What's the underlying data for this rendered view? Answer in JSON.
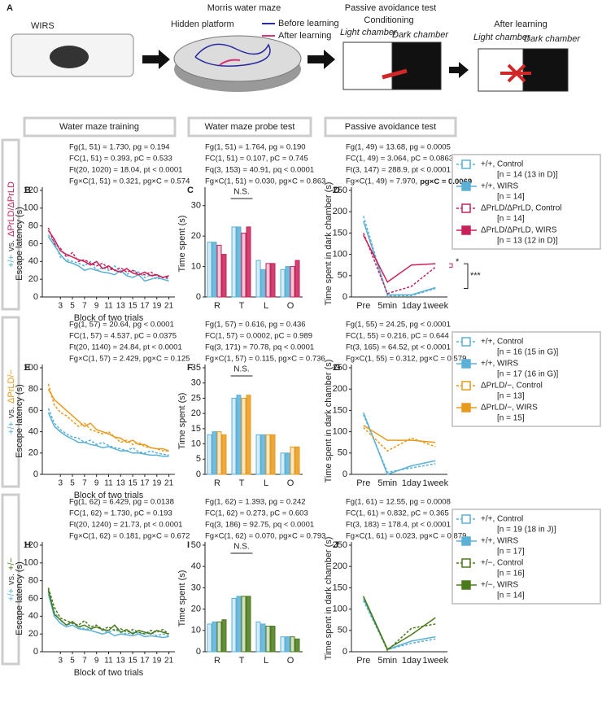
{
  "panel_a": {
    "label": "A",
    "wirs": "WIRS",
    "maze_title": "Morris water maze",
    "hidden_platform": "Hidden platform",
    "before": "Before learning",
    "after": "After learning",
    "pa_title": "Passive avoidance test",
    "conditioning": "Conditioning",
    "after_learning": "After learning",
    "light1": "Light chamber",
    "dark1": "Dark chamber",
    "light2": "Light chamber",
    "dark2": "Dark chamber"
  },
  "headers": [
    "Water maze training",
    "Water maze probe test",
    "Passive avoidance test"
  ],
  "row_labels": [
    {
      "control": "+/+",
      "vs": "vs.",
      "mutant": "ΔPrLD/ΔPrLD"
    },
    {
      "control": "+/+",
      "vs": "vs.",
      "mutant": "ΔPrLD/−"
    },
    {
      "control": "+/+",
      "vs": "vs.",
      "mutant": "+/−"
    }
  ],
  "chart_data": [
    {
      "type": "line",
      "label": "B",
      "ylabel": "Escape latency (s)",
      "xlabel": "Block of two trials",
      "stats": [
        "Fg(1, 51) = 1.730, pg = 0.194",
        "FC(1, 51) = 0.393, pC = 0.533",
        "Ft(20, 1020) = 18.04, pt < 0.0001",
        "Fg×C(1, 51) = 0.321, pg×C = 0.574"
      ],
      "x": [
        1,
        2,
        3,
        4,
        5,
        6,
        7,
        8,
        9,
        10,
        11,
        12,
        13,
        14,
        15,
        16,
        17,
        18,
        19,
        20,
        21
      ],
      "xlim": [
        0,
        22
      ],
      "xticks": [
        3,
        5,
        7,
        9,
        11,
        13,
        15,
        17,
        19,
        21
      ],
      "ylim": [
        0,
        120
      ],
      "yticks": [
        0,
        20,
        40,
        60,
        80,
        100,
        120
      ],
      "series": [
        {
          "color": "#5bb0d6",
          "style": "dashed",
          "values": [
            70,
            62,
            45,
            42,
            40,
            38,
            35,
            40,
            30,
            33,
            30,
            35,
            28,
            25,
            30,
            28,
            22,
            25,
            20,
            22,
            20
          ]
        },
        {
          "color": "#5bb0d6",
          "style": "solid",
          "values": [
            68,
            58,
            48,
            40,
            38,
            35,
            30,
            32,
            30,
            28,
            27,
            25,
            30,
            24,
            22,
            25,
            18,
            20,
            22,
            20,
            18
          ]
        },
        {
          "color": "#c8215a",
          "style": "dashed",
          "values": [
            78,
            60,
            55,
            45,
            50,
            40,
            42,
            38,
            35,
            38,
            32,
            30,
            33,
            28,
            30,
            26,
            25,
            28,
            24,
            22,
            22
          ]
        },
        {
          "color": "#c8215a",
          "style": "solid",
          "values": [
            75,
            65,
            52,
            48,
            45,
            42,
            40,
            36,
            40,
            32,
            35,
            30,
            28,
            32,
            27,
            25,
            28,
            24,
            25,
            22,
            24
          ]
        }
      ]
    },
    {
      "type": "bar",
      "label": "C",
      "ylabel": "Time spent (s)",
      "stats": [
        "Fg(1, 51) = 1.764, pg = 0.190",
        "FC(1, 51) = 0.107, pC = 0.745",
        "Fq(3, 153) = 40.91, pq < 0.0001",
        "Fg×C(1, 51) = 0.030, pg×C = 0.863"
      ],
      "annotations": [
        "N.S."
      ],
      "categories": [
        "R",
        "T",
        "L",
        "O"
      ],
      "ylim": [
        0,
        35
      ],
      "yticks": [
        0,
        10,
        20,
        30
      ],
      "series": [
        {
          "color": "#5bb0d6",
          "style": "dashed",
          "values": [
            18,
            23,
            12,
            9
          ]
        },
        {
          "color": "#5bb0d6",
          "style": "solid",
          "values": [
            18,
            23,
            9,
            10
          ]
        },
        {
          "color": "#c8215a",
          "style": "dashed",
          "values": [
            17,
            21,
            11,
            10
          ]
        },
        {
          "color": "#c8215a",
          "style": "solid",
          "values": [
            14,
            23,
            11,
            12
          ]
        }
      ]
    },
    {
      "type": "line",
      "label": "D",
      "ylabel": "Time spent in dark chamber (s)",
      "stats": [
        "Fg(1, 49) = 13.68, pg = 0.0005",
        "FC(1, 49) = 3.064, pC = 0.0863",
        "Ft(3, 147) = 288.9, pt < 0.0001",
        "Fg×C(1, 49) = 7.970,"
      ],
      "stats_bold": "pg×C = 0.0069",
      "annotations": [
        "*",
        "***"
      ],
      "legend": "right",
      "categories": [
        "Pre",
        "5min",
        "1day",
        "1week"
      ],
      "ylim": [
        0,
        250
      ],
      "yticks": [
        0,
        50,
        100,
        150,
        200,
        250
      ],
      "series": [
        {
          "name": "+/+, Control",
          "n_label": "[n = 14 (13 in D)]",
          "color": "#5bb0d6",
          "style": "dashed",
          "values": [
            190,
            3,
            3,
            20
          ]
        },
        {
          "name": "+/+, WIRS",
          "n_label": "[n = 14]",
          "color": "#5bb0d6",
          "style": "solid",
          "values": [
            178,
            5,
            5,
            22
          ]
        },
        {
          "name": "ΔPrLD/ΔPrLD, Control",
          "n_label": "[n = 14]",
          "color": "#c8215a",
          "style": "dashed",
          "values": [
            150,
            8,
            25,
            70
          ]
        },
        {
          "name": "ΔPrLD/ΔPrLD, WIRS",
          "n_label": "[n = 13 (12 in D)]",
          "color": "#c8215a",
          "style": "solid",
          "values": [
            145,
            35,
            75,
            78
          ]
        }
      ]
    },
    {
      "type": "line",
      "label": "E",
      "ylabel": "Escape latency (s)",
      "xlabel": "Block of two trials",
      "stats": [
        "Fg(1, 57) = 20.64, pg < 0.0001",
        "FC(1, 57) = 4.537, pC = 0.0375",
        "Ft(20, 1140) = 24.84, pt < 0.0001",
        "Fg×C(1, 57) = 2.429, pg×C = 0.125"
      ],
      "x": [
        1,
        2,
        3,
        4,
        5,
        6,
        7,
        8,
        9,
        10,
        11,
        12,
        13,
        14,
        15,
        16,
        17,
        18,
        19,
        20,
        21
      ],
      "xlim": [
        0,
        22
      ],
      "xticks": [
        3,
        5,
        7,
        9,
        11,
        13,
        15,
        17,
        19,
        21
      ],
      "ylim": [
        0,
        100
      ],
      "yticks": [
        0,
        20,
        40,
        60,
        80,
        100
      ],
      "series": [
        {
          "color": "#5bb0d6",
          "style": "dashed",
          "values": [
            62,
            48,
            42,
            38,
            35,
            34,
            30,
            32,
            28,
            30,
            27,
            25,
            24,
            22,
            25,
            21,
            20,
            22,
            20,
            19,
            18
          ]
        },
        {
          "color": "#5bb0d6",
          "style": "solid",
          "values": [
            58,
            45,
            40,
            36,
            33,
            30,
            30,
            28,
            27,
            25,
            26,
            24,
            22,
            22,
            20,
            20,
            19,
            18,
            18,
            17,
            17
          ]
        },
        {
          "color": "#e89a1c",
          "style": "dashed",
          "values": [
            85,
            65,
            58,
            55,
            50,
            45,
            48,
            42,
            40,
            38,
            40,
            35,
            30,
            32,
            28,
            30,
            26,
            25,
            24,
            22,
            22
          ]
        },
        {
          "color": "#e89a1c",
          "style": "solid",
          "values": [
            80,
            70,
            65,
            60,
            55,
            50,
            45,
            48,
            42,
            40,
            38,
            35,
            34,
            30,
            32,
            28,
            28,
            25,
            24,
            24,
            22
          ]
        }
      ]
    },
    {
      "type": "bar",
      "label": "F",
      "ylabel": "Time spent (s)",
      "stats": [
        "Fg(1, 57) = 0.616, pg = 0.436",
        "FC(1, 57) = 0.0002, pC = 0.989",
        "Fq(3, 171) = 70.78, pq < 0.0001",
        "Fg×C(1, 57) = 0.115, pg×C = 0.736"
      ],
      "annotations": [
        "N.S."
      ],
      "categories": [
        "R",
        "T",
        "L",
        "O"
      ],
      "ylim": [
        0,
        35
      ],
      "yticks": [
        0,
        5,
        10,
        15,
        20,
        25,
        30,
        35
      ],
      "series": [
        {
          "color": "#5bb0d6",
          "style": "dashed",
          "values": [
            13,
            25,
            13,
            7
          ]
        },
        {
          "color": "#5bb0d6",
          "style": "solid",
          "values": [
            14,
            26,
            13,
            7
          ]
        },
        {
          "color": "#e89a1c",
          "style": "dashed",
          "values": [
            14,
            25,
            13,
            9
          ]
        },
        {
          "color": "#e89a1c",
          "style": "solid",
          "values": [
            13,
            26,
            13,
            9
          ]
        }
      ]
    },
    {
      "type": "line",
      "label": "G",
      "ylabel": "Time spent in dark chamber (s)",
      "stats": [
        "Fg(1, 55) = 24.25, pg < 0.0001",
        "FC(1, 55) = 0.216, pC = 0.644",
        "Ft(3, 165) = 64.52, pt < 0.0001",
        "Fg×C(1, 55) = 0.312, pg×C = 0.579"
      ],
      "legend": "right",
      "categories": [
        "Pre",
        "5min",
        "1day",
        "1week"
      ],
      "ylim": [
        0,
        250
      ],
      "yticks": [
        0,
        50,
        100,
        150,
        200,
        250
      ],
      "series": [
        {
          "name": "+/+, Control",
          "n_label": "[n = 16 (15 in G)]",
          "color": "#5bb0d6",
          "style": "dashed",
          "values": [
            140,
            5,
            15,
            25
          ]
        },
        {
          "name": "+/+, WIRS",
          "n_label": "[n = 17 (16 in G)]",
          "color": "#5bb0d6",
          "style": "solid",
          "values": [
            145,
            0,
            20,
            32
          ]
        },
        {
          "name": "ΔPrLD/−, Control",
          "n_label": "[n = 13]",
          "color": "#e89a1c",
          "style": "dashed",
          "values": [
            110,
            55,
            85,
            65
          ]
        },
        {
          "name": "ΔPrLD/−, WIRS",
          "n_label": "[n = 15]",
          "color": "#e89a1c",
          "style": "solid",
          "values": [
            115,
            80,
            80,
            75
          ]
        }
      ]
    },
    {
      "type": "line",
      "label": "H",
      "ylabel": "Escape latency (s)",
      "xlabel": "Block of two trials",
      "stats": [
        "Fg(1, 62) = 6.429, pg = 0.0138",
        "FC(1, 62) = 1.730, pC = 0.193",
        "Ft(20, 1240) = 21.73, pt < 0.0001",
        "Fg×C(1, 62) = 0.181, pg×C = 0.672"
      ],
      "x": [
        1,
        2,
        3,
        4,
        5,
        6,
        7,
        8,
        9,
        10,
        11,
        12,
        13,
        14,
        15,
        16,
        17,
        18,
        19,
        20,
        21
      ],
      "xlim": [
        0,
        22
      ],
      "xticks": [
        3,
        5,
        7,
        9,
        11,
        13,
        15,
        17,
        19,
        21
      ],
      "ylim": [
        0,
        120
      ],
      "yticks": [
        0,
        20,
        40,
        60,
        80,
        100,
        120
      ],
      "series": [
        {
          "color": "#5bb0d6",
          "style": "dashed",
          "values": [
            68,
            45,
            35,
            30,
            32,
            28,
            26,
            25,
            28,
            24,
            22,
            25,
            22,
            20,
            22,
            21,
            20,
            22,
            18,
            20,
            18
          ]
        },
        {
          "color": "#5bb0d6",
          "style": "solid",
          "values": [
            65,
            40,
            32,
            28,
            30,
            26,
            25,
            24,
            22,
            20,
            22,
            18,
            20,
            19,
            18,
            20,
            17,
            18,
            17,
            16,
            17
          ]
        },
        {
          "color": "#4a7a1a",
          "style": "dashed",
          "values": [
            72,
            50,
            38,
            35,
            32,
            30,
            35,
            28,
            30,
            25,
            28,
            24,
            26,
            22,
            25,
            22,
            20,
            24,
            22,
            25,
            20
          ]
        },
        {
          "color": "#4a7a1a",
          "style": "solid",
          "values": [
            70,
            42,
            36,
            30,
            34,
            28,
            30,
            26,
            28,
            25,
            24,
            30,
            22,
            25,
            20,
            24,
            22,
            20,
            24,
            22,
            20
          ]
        }
      ]
    },
    {
      "type": "bar",
      "label": "I",
      "ylabel": "Time spent (s)",
      "stats": [
        "Fg(1, 62) = 1.393, pg = 0.242",
        "FC(1, 62) = 0.273, pC = 0.603",
        "Fq(3, 186) = 92.75, pq < 0.0001",
        "Fg×C(1, 62) = 0.070, pg×C = 0.793"
      ],
      "annotations": [
        "N.S."
      ],
      "categories": [
        "R",
        "T",
        "L",
        "O"
      ],
      "ylim": [
        0,
        50
      ],
      "yticks": [
        0,
        10,
        20,
        30,
        40,
        50
      ],
      "series": [
        {
          "color": "#5bb0d6",
          "style": "dashed",
          "values": [
            13,
            25,
            14,
            7
          ]
        },
        {
          "color": "#5bb0d6",
          "style": "solid",
          "values": [
            14,
            26,
            13,
            7
          ]
        },
        {
          "color": "#4a7a1a",
          "style": "dashed",
          "values": [
            14,
            26,
            12,
            7
          ]
        },
        {
          "color": "#4a7a1a",
          "style": "solid",
          "values": [
            15,
            26,
            12,
            6
          ]
        }
      ]
    },
    {
      "type": "line",
      "label": "J",
      "ylabel": "Time spent in dark chamber (s)",
      "stats": [
        "Fg(1, 61) = 12.55, pg = 0.0008",
        "FC(1, 61) = 0.832, pC = 0.365",
        "Ft(3, 183) = 178.4, pt < 0.0001",
        "Fg×C(1, 61) = 0.023, pg×C = 0.879"
      ],
      "legend": "right",
      "categories": [
        "Pre",
        "5min",
        "1day",
        "1week"
      ],
      "ylim": [
        0,
        250
      ],
      "yticks": [
        0,
        50,
        100,
        150,
        200,
        250
      ],
      "series": [
        {
          "name": "+/+, Control",
          "n_label": "[n = 19 (18 in J)]",
          "color": "#5bb0d6",
          "style": "dashed",
          "values": [
            120,
            5,
            20,
            30
          ]
        },
        {
          "name": "+/+, WIRS",
          "n_label": "[n = 17]",
          "color": "#5bb0d6",
          "style": "solid",
          "values": [
            125,
            5,
            25,
            35
          ]
        },
        {
          "name": "+/−, Control",
          "n_label": "[n = 16]",
          "color": "#4a7a1a",
          "style": "dashed",
          "values": [
            130,
            3,
            55,
            65
          ]
        },
        {
          "name": "+/−, WIRS",
          "n_label": "[n = 14]",
          "color": "#4a7a1a",
          "style": "solid",
          "values": [
            130,
            6,
            40,
            80
          ]
        }
      ]
    }
  ]
}
